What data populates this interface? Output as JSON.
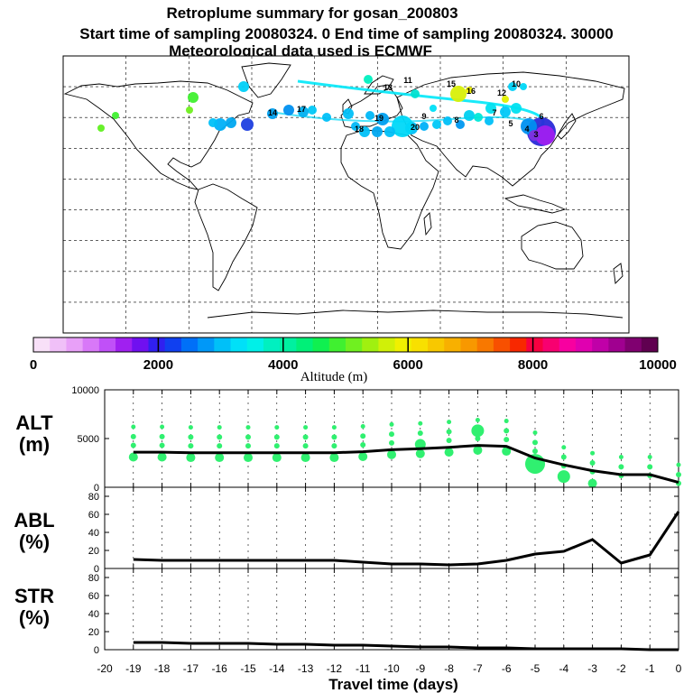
{
  "header": {
    "title": "Retroplume summary for gosan_200803",
    "line2": "Start time of sampling 20080324.    0     End time of sampling 20080324. 30000",
    "line3": "Meteorological data used is ECMWF"
  },
  "colorbar": {
    "ticks": [
      "0",
      "2000",
      "4000",
      "6000",
      "8000",
      "10000"
    ],
    "label": "Altitude  (m)",
    "colors": [
      "#f8e0f8",
      "#f0c0f8",
      "#e8a0f8",
      "#d878f8",
      "#c050f8",
      "#a020f0",
      "#7010f0",
      "#3020f0",
      "#1040f0",
      "#0070f8",
      "#0098f8",
      "#00c0f8",
      "#00e0f8",
      "#00f0e8",
      "#00f0c0",
      "#00f0a0",
      "#00f078",
      "#10f050",
      "#40f030",
      "#70f020",
      "#a0f010",
      "#d0f008",
      "#f0f000",
      "#f8e000",
      "#f8c800",
      "#f8b000",
      "#f89800",
      "#f87800",
      "#f85000",
      "#f82800",
      "#f80040",
      "#f80070",
      "#f800a0",
      "#e000b0",
      "#c000a8",
      "#a00090",
      "#800070",
      "#600050"
    ]
  },
  "bubble_labels": [
    "13",
    "11",
    "15",
    "12",
    "10",
    "16",
    "14",
    "17",
    "19",
    "18",
    "20",
    "9",
    "8",
    "7",
    "6",
    "5",
    "4",
    "3"
  ],
  "chart_data": [
    {
      "type": "line",
      "panel": "ALT",
      "ylabel_lines": [
        "ALT",
        "(m)"
      ],
      "ylim": [
        0,
        10000
      ],
      "yticks": [
        "0",
        "5000",
        "10000"
      ],
      "x": [
        -19,
        -18,
        -17,
        -16,
        -15,
        -14,
        -13,
        -12,
        -11,
        -10,
        -9,
        -8,
        -7,
        -6,
        -5,
        -4,
        -3,
        -2,
        -1,
        0
      ],
      "values": [
        3600,
        3600,
        3550,
        3550,
        3550,
        3550,
        3550,
        3550,
        3650,
        3850,
        3950,
        4100,
        4300,
        4200,
        3000,
        2300,
        1700,
        1300,
        1300,
        500
      ]
    },
    {
      "type": "line",
      "panel": "ABL",
      "ylabel_lines": [
        "ABL",
        "(%)"
      ],
      "ylim": [
        0,
        90
      ],
      "yticks": [
        "0",
        "20",
        "40",
        "60",
        "80"
      ],
      "x": [
        -19,
        -18,
        -17,
        -16,
        -15,
        -14,
        -13,
        -12,
        -11,
        -10,
        -9,
        -8,
        -7,
        -6,
        -5,
        -4,
        -3,
        -2,
        -1,
        0
      ],
      "values": [
        10,
        9,
        9,
        9,
        9,
        9,
        9,
        9,
        7,
        5,
        5,
        4,
        5,
        9,
        16,
        19,
        32,
        6,
        15,
        63
      ]
    },
    {
      "type": "line",
      "panel": "STR",
      "ylabel_lines": [
        "STR",
        "(%)"
      ],
      "ylim": [
        0,
        90
      ],
      "yticks": [
        "0",
        "20",
        "40",
        "60",
        "80"
      ],
      "x": [
        -19,
        -18,
        -17,
        -16,
        -15,
        -14,
        -13,
        -12,
        -11,
        -10,
        -9,
        -8,
        -7,
        -6,
        -5,
        -4,
        -3,
        -2,
        -1,
        0
      ],
      "values": [
        8,
        8,
        7,
        7,
        7,
        6,
        6,
        5,
        5,
        4,
        3,
        3,
        2,
        2,
        1,
        1,
        1,
        1,
        0,
        0
      ],
      "xlabel": "Travel time (days)",
      "xticks": [
        "-20",
        "-19",
        "-18",
        "-17",
        "-16",
        "-15",
        "-14",
        "-13",
        "-12",
        "-11",
        "-10",
        "-9",
        "-8",
        "-7",
        "-6",
        "-5",
        "-4",
        "-3",
        "-2",
        "-1",
        "0"
      ]
    }
  ]
}
